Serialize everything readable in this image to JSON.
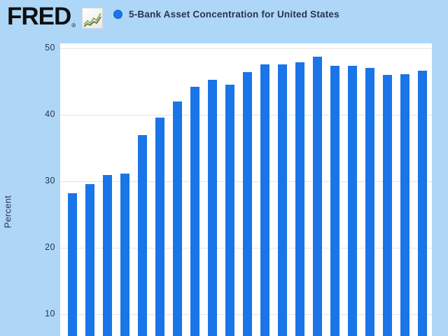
{
  "header": {
    "logo_text": "FRED",
    "logo_registered_mark": "®",
    "legend": {
      "marker_color": "#1a75e8",
      "series_label": "5-Bank Asset Concentration for United States"
    }
  },
  "y_axis": {
    "label": "Percent",
    "tick_values": [
      50,
      40,
      30,
      20,
      10
    ]
  },
  "chart_data": {
    "type": "bar",
    "title": "5-Bank Asset Concentration for United States",
    "ylabel": "Percent",
    "values": [
      28.2,
      29.6,
      31.0,
      31.2,
      37.0,
      39.6,
      42.0,
      44.2,
      45.3,
      44.5,
      46.4,
      47.6,
      47.6,
      47.9,
      48.7,
      47.4,
      47.4,
      47.1,
      46.0,
      46.1,
      46.6
    ],
    "bar_count": 21,
    "y_ticks": [
      10,
      20,
      30,
      40,
      50
    ],
    "ylim_visible": [
      6.5,
      50.7
    ],
    "grid": true,
    "bar_color": "#1a75e8",
    "background_color": "#aed7f7",
    "plot_background_color": "#ffffff",
    "x_axis_labels_visible": false
  },
  "colors": {
    "accent_blue": "#1a75e8",
    "background_blue": "#aed7f7",
    "text_navy": "#26334d",
    "gridline": "#e4e4e4",
    "logo_black": "#0f0f0f"
  }
}
